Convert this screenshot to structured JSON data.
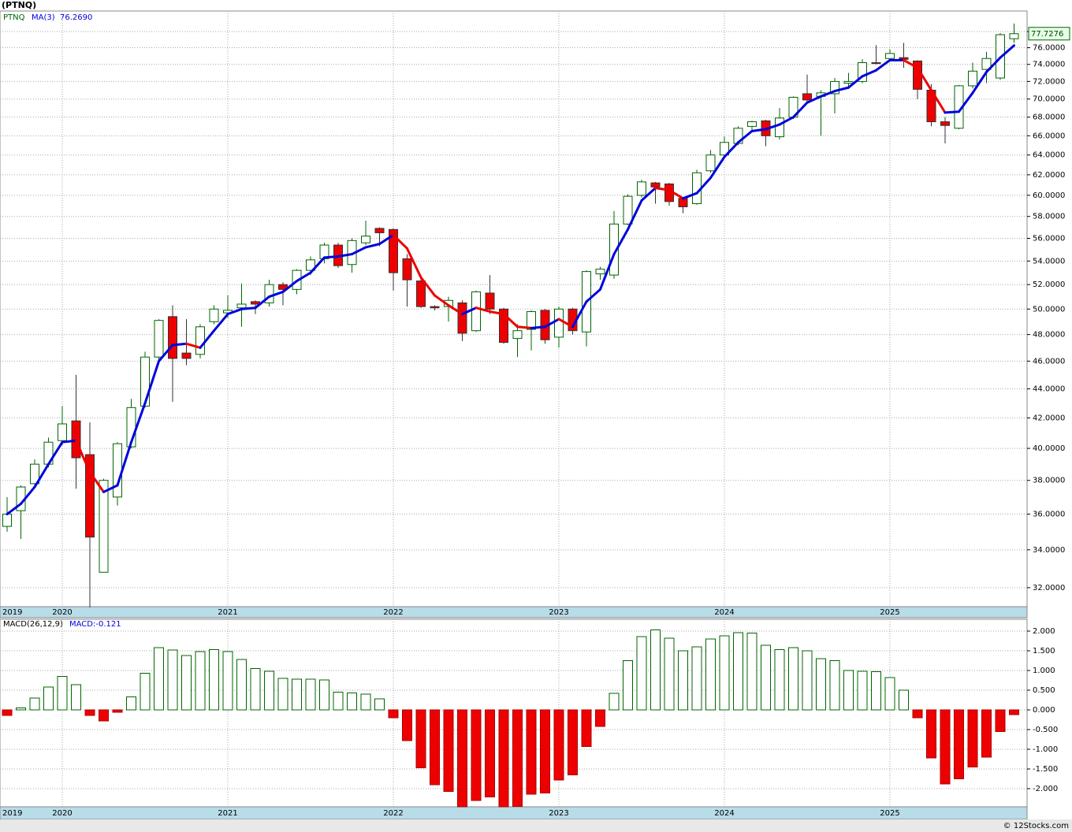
{
  "chart_data": [
    {
      "type": "candlestick",
      "title": "(PTNQ)",
      "symbol": "PTNQ",
      "categories": [
        "2019",
        null,
        null,
        null,
        "2020",
        null,
        null,
        null,
        null,
        null,
        null,
        null,
        null,
        null,
        null,
        null,
        "2021",
        null,
        null,
        null,
        null,
        null,
        null,
        null,
        null,
        null,
        null,
        null,
        "2022",
        null,
        null,
        null,
        null,
        null,
        null,
        null,
        null,
        null,
        null,
        null,
        "2023",
        null,
        null,
        null,
        null,
        null,
        null,
        null,
        null,
        null,
        null,
        null,
        "2024",
        null,
        null,
        null,
        null,
        null,
        null,
        null,
        null,
        null,
        null,
        null,
        "2025",
        null,
        null,
        null,
        null,
        null,
        null,
        null,
        null,
        null
      ],
      "open": [
        35.3,
        36.2,
        37.8,
        39.0,
        40.5,
        41.8,
        39.6,
        32.8,
        37.0,
        40.1,
        42.8,
        46.3,
        49.4,
        46.6,
        46.5,
        49.0,
        49.7,
        50.1,
        50.6,
        50.5,
        52.0,
        51.6,
        53.2,
        54.2,
        55.4,
        53.7,
        55.6,
        56.9,
        56.8,
        54.2,
        52.3,
        50.2,
        50.2,
        50.5,
        48.3,
        51.3,
        50.0,
        47.7,
        48.4,
        49.9,
        47.8,
        50.0,
        48.2,
        52.9,
        52.8,
        57.3,
        60.0,
        61.2,
        61.1,
        59.7,
        59.2,
        62.4,
        64.0,
        65.2,
        67.0,
        67.6,
        65.9,
        68.0,
        70.6,
        70.3,
        70.6,
        71.8,
        72.0,
        74.2,
        74.7,
        74.8,
        74.4,
        71.0,
        67.5,
        66.8,
        71.5,
        73.4,
        72.4,
        77.1
      ],
      "high": [
        37.0,
        37.7,
        39.3,
        40.7,
        42.8,
        45.0,
        41.7,
        38.1,
        40.4,
        43.3,
        46.7,
        49.2,
        50.3,
        49.2,
        48.8,
        50.3,
        51.1,
        52.1,
        50.7,
        52.4,
        52.2,
        53.3,
        54.4,
        55.6,
        55.6,
        56.0,
        57.6,
        57.0,
        56.9,
        54.6,
        52.8,
        50.3,
        51.0,
        50.7,
        51.5,
        52.8,
        50.1,
        48.8,
        49.9,
        50.0,
        50.2,
        50.1,
        53.2,
        53.5,
        58.5,
        60.1,
        61.5,
        61.3,
        61.2,
        59.8,
        62.5,
        64.5,
        65.9,
        67.0,
        67.6,
        67.7,
        69.0,
        70.3,
        72.8,
        71.0,
        72.4,
        73.0,
        74.6,
        76.3,
        75.8,
        76.6,
        74.5,
        71.7,
        68.0,
        71.6,
        74.2,
        75.5,
        77.8,
        79.0
      ],
      "low": [
        35.0,
        34.6,
        37.6,
        38.8,
        40.2,
        37.5,
        31.0,
        32.8,
        36.5,
        40.0,
        42.7,
        46.0,
        43.1,
        45.7,
        46.2,
        48.8,
        49.3,
        48.6,
        49.6,
        50.2,
        50.3,
        51.2,
        52.8,
        53.8,
        53.4,
        53.0,
        55.4,
        55.3,
        51.5,
        50.2,
        50.1,
        49.9,
        49.0,
        47.5,
        48.2,
        49.6,
        47.3,
        46.3,
        46.8,
        47.3,
        47.0,
        48.0,
        47.1,
        52.4,
        52.5,
        57.2,
        59.8,
        59.2,
        59.0,
        58.3,
        59.1,
        62.2,
        63.7,
        65.0,
        66.6,
        64.9,
        65.6,
        67.8,
        69.6,
        66.0,
        68.4,
        71.2,
        71.8,
        74.0,
        74.3,
        73.6,
        70.0,
        67.0,
        65.2,
        66.7,
        71.2,
        71.8,
        72.2,
        76.6
      ],
      "close": [
        36.0,
        37.6,
        39.0,
        40.4,
        41.6,
        39.4,
        34.7,
        38.0,
        40.3,
        42.7,
        46.3,
        49.1,
        46.2,
        46.2,
        48.6,
        50.0,
        49.9,
        50.4,
        50.4,
        52.0,
        51.6,
        53.2,
        54.1,
        55.4,
        53.6,
        55.8,
        56.2,
        56.5,
        53.0,
        52.4,
        50.2,
        50.1,
        50.7,
        48.1,
        51.4,
        50.0,
        47.4,
        48.3,
        49.8,
        47.6,
        50.0,
        48.3,
        53.1,
        53.3,
        57.3,
        59.9,
        61.3,
        60.8,
        59.4,
        58.9,
        62.2,
        64.0,
        65.3,
        66.8,
        67.5,
        66.0,
        67.9,
        70.2,
        69.9,
        70.7,
        72.0,
        72.0,
        74.2,
        74.1,
        75.3,
        74.6,
        71.1,
        67.5,
        67.1,
        71.5,
        73.2,
        74.7,
        77.6,
        77.7276
      ],
      "up_color": "#006400",
      "down_color": "#ee0000",
      "ma": {
        "name": "MA(3)",
        "last_label": "76.2690",
        "up_color": "#0000dd",
        "down_color": "#ee0000",
        "values": [
          36.0,
          36.6,
          37.6,
          39.0,
          40.4,
          40.5,
          38.5,
          37.3,
          37.7,
          40.4,
          43.0,
          46.0,
          47.2,
          47.3,
          47.0,
          48.3,
          49.6,
          50.0,
          50.1,
          51.0,
          51.4,
          52.3,
          53.0,
          54.3,
          54.4,
          54.6,
          55.2,
          55.5,
          56.3,
          55.1,
          52.6,
          51.1,
          50.3,
          49.6,
          50.1,
          49.8,
          49.6,
          48.6,
          48.5,
          48.6,
          49.2,
          48.6,
          50.6,
          51.6,
          54.6,
          56.8,
          59.5,
          60.7,
          60.5,
          59.7,
          60.2,
          61.7,
          63.8,
          65.3,
          66.5,
          66.7,
          67.2,
          68.0,
          69.6,
          70.3,
          70.9,
          71.3,
          72.6,
          73.3,
          74.5,
          74.5,
          73.6,
          71.0,
          68.5,
          68.6,
          70.7,
          73.1,
          74.8,
          76.269
        ]
      },
      "ylim": [
        31.04,
        80.6
      ],
      "log_scale": true,
      "grid": true,
      "yticks": [
        {
          "value": 32,
          "label": "32.0000"
        },
        {
          "value": 34,
          "label": "34.0000"
        },
        {
          "value": 36,
          "label": "36.0000"
        },
        {
          "value": 38,
          "label": "38.0000"
        },
        {
          "value": 40,
          "label": "40.0000"
        },
        {
          "value": 42,
          "label": "42.0000"
        },
        {
          "value": 44,
          "label": "44.0000"
        },
        {
          "value": 46,
          "label": "46.0000"
        },
        {
          "value": 48,
          "label": "48.0000"
        },
        {
          "value": 50,
          "label": "50.0000"
        },
        {
          "value": 52,
          "label": "52.0000"
        },
        {
          "value": 54,
          "label": "54.0000"
        },
        {
          "value": 56,
          "label": "56.0000"
        },
        {
          "value": 58,
          "label": "58.0000"
        },
        {
          "value": 60,
          "label": "60.0000"
        },
        {
          "value": 62,
          "label": "62.0000"
        },
        {
          "value": 64,
          "label": "64.0000"
        },
        {
          "value": 66,
          "label": "66.0000"
        },
        {
          "value": 68,
          "label": "68.0000"
        },
        {
          "value": 70,
          "label": "70.0000"
        },
        {
          "value": 72,
          "label": "72.0000"
        },
        {
          "value": 74,
          "label": "74.0000"
        },
        {
          "value": 76,
          "label": "76.0000"
        },
        {
          "value": 78,
          "label": "78.0000"
        }
      ]
    },
    {
      "type": "bar",
      "title": "MACD(26,12,9)",
      "subtitle": "MACD:-0.121",
      "categories": [
        "2019",
        null,
        null,
        null,
        "2020",
        null,
        null,
        null,
        null,
        null,
        null,
        null,
        null,
        null,
        null,
        null,
        "2021",
        null,
        null,
        null,
        null,
        null,
        null,
        null,
        null,
        null,
        null,
        null,
        "2022",
        null,
        null,
        null,
        null,
        null,
        null,
        null,
        null,
        null,
        null,
        null,
        "2023",
        null,
        null,
        null,
        null,
        null,
        null,
        null,
        null,
        null,
        null,
        null,
        "2024",
        null,
        null,
        null,
        null,
        null,
        null,
        null,
        null,
        null,
        null,
        null,
        "2025",
        null,
        null,
        null,
        null,
        null,
        null,
        null,
        null,
        null
      ],
      "values": [
        -0.14,
        0.05,
        0.3,
        0.58,
        0.85,
        0.64,
        -0.14,
        -0.28,
        -0.06,
        0.33,
        0.93,
        1.58,
        1.52,
        1.38,
        1.48,
        1.53,
        1.48,
        1.28,
        1.05,
        0.98,
        0.8,
        0.78,
        0.78,
        0.76,
        0.45,
        0.43,
        0.4,
        0.28,
        -0.2,
        -0.78,
        -1.47,
        -1.9,
        -2.07,
        -2.46,
        -2.3,
        -2.21,
        -2.46,
        -2.45,
        -2.14,
        -2.11,
        -1.78,
        -1.65,
        -0.93,
        -0.42,
        0.42,
        1.25,
        1.86,
        2.03,
        1.82,
        1.5,
        1.6,
        1.8,
        1.88,
        1.96,
        1.95,
        1.64,
        1.53,
        1.58,
        1.5,
        1.3,
        1.25,
        1.0,
        0.98,
        0.97,
        0.82,
        0.5,
        -0.2,
        -1.22,
        -1.88,
        -1.75,
        -1.45,
        -1.2,
        -0.55,
        -0.121
      ],
      "up_color": "#006400",
      "down_color": "#ee0000",
      "ylim": [
        -2.46,
        2.3
      ],
      "grid": true,
      "yticks": [
        {
          "value": 2,
          "label": "2.000"
        },
        {
          "value": 1.5,
          "label": "1.500"
        },
        {
          "value": 1,
          "label": "1.000"
        },
        {
          "value": 0.5,
          "label": "0.500"
        },
        {
          "value": 0,
          "label": "0.000"
        },
        {
          "value": -0.5,
          "label": "-0.500"
        },
        {
          "value": -1,
          "label": "-1.000"
        },
        {
          "value": -1.5,
          "label": "-1.500"
        },
        {
          "value": -2,
          "label": "-2.000"
        }
      ]
    }
  ],
  "footer": "© 12Stocks.com"
}
